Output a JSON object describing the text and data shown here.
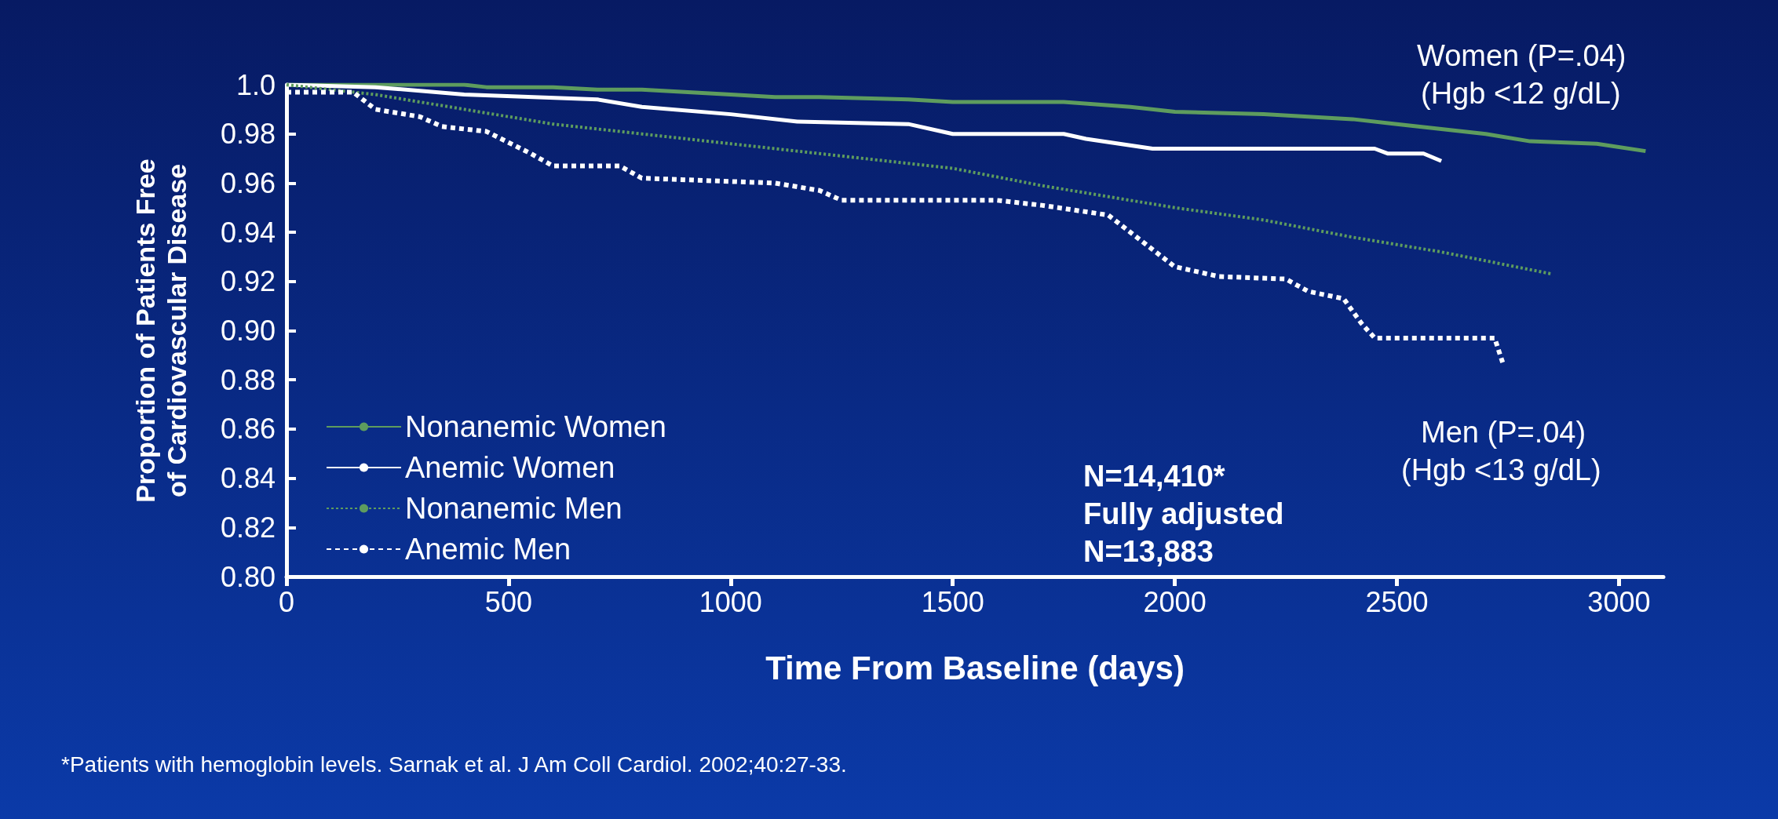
{
  "chart_data": {
    "type": "line",
    "xlabel": "Time From Baseline (days)",
    "ylabel": "Proportion of Patients Free\nof Cardiovascular Disease",
    "xlim": [
      0,
      3100
    ],
    "xticks": [
      0,
      500,
      1000,
      1500,
      2000,
      2500,
      3000
    ],
    "ylim": [
      0.8,
      1.0
    ],
    "yticks": [
      {
        "value": 0.8,
        "label": "0.80"
      },
      {
        "value": 0.82,
        "label": "0.82"
      },
      {
        "value": 0.84,
        "label": "0.84"
      },
      {
        "value": 0.86,
        "label": "0.86"
      },
      {
        "value": 0.88,
        "label": "0.88"
      },
      {
        "value": 0.9,
        "label": "0.90"
      },
      {
        "value": 0.92,
        "label": "0.92"
      },
      {
        "value": 0.94,
        "label": "0.94"
      },
      {
        "value": 0.96,
        "label": "0.96"
      },
      {
        "value": 0.98,
        "label": "0.98"
      },
      {
        "value": 1.0,
        "label": "1.0"
      }
    ],
    "grid": false,
    "legend": "bottom left",
    "marker": "none",
    "series": [
      {
        "name": "Nonanemic Women",
        "color": "#5e9c5e",
        "line_style": "solid",
        "x": [
          0,
          400,
          450,
          600,
          700,
          800,
          1000,
          1100,
          1200,
          1400,
          1500,
          1750,
          1900,
          2000,
          2200,
          2300,
          2400,
          2500,
          2600,
          2700,
          2800,
          2950,
          3060
        ],
        "values": [
          1.0,
          1.0,
          0.999,
          0.999,
          0.998,
          0.998,
          0.996,
          0.995,
          0.995,
          0.994,
          0.993,
          0.993,
          0.991,
          0.989,
          0.988,
          0.987,
          0.986,
          0.984,
          0.982,
          0.98,
          0.977,
          0.976,
          0.973
        ]
      },
      {
        "name": "Anemic Women",
        "color": "#ffffff",
        "line_style": "solid",
        "x": [
          0,
          200,
          400,
          700,
          800,
          1000,
          1150,
          1400,
          1500,
          1750,
          1800,
          1950,
          2450,
          2480,
          2560,
          2600
        ],
        "values": [
          1.0,
          0.999,
          0.996,
          0.994,
          0.991,
          0.988,
          0.985,
          0.984,
          0.98,
          0.98,
          0.978,
          0.974,
          0.974,
          0.972,
          0.972,
          0.969
        ]
      },
      {
        "name": "Nonanemic Men",
        "color": "#5e9c5e",
        "line_style": "dotted",
        "x": [
          0,
          200,
          400,
          600,
          800,
          1000,
          1200,
          1500,
          1700,
          2000,
          2200,
          2400,
          2600,
          2850
        ],
        "values": [
          1.0,
          0.996,
          0.99,
          0.984,
          0.98,
          0.976,
          0.972,
          0.966,
          0.959,
          0.95,
          0.945,
          0.938,
          0.932,
          0.923
        ]
      },
      {
        "name": "Anemic Men",
        "color": "#ffffff",
        "line_style": "dashed",
        "x": [
          0,
          150,
          200,
          300,
          350,
          450,
          550,
          600,
          750,
          800,
          1100,
          1200,
          1250,
          1600,
          1700,
          1850,
          1900,
          1950,
          2000,
          2100,
          2250,
          2300,
          2380,
          2420,
          2450,
          2720,
          2740
        ],
        "values": [
          0.997,
          0.997,
          0.99,
          0.987,
          0.983,
          0.981,
          0.972,
          0.967,
          0.967,
          0.962,
          0.96,
          0.957,
          0.953,
          0.953,
          0.951,
          0.947,
          0.94,
          0.933,
          0.926,
          0.922,
          0.921,
          0.916,
          0.913,
          0.903,
          0.897,
          0.897,
          0.886
        ]
      }
    ],
    "annotations": [
      "Women (P=.04)",
      "(Hgb <12 g/dL)",
      "Men (P=.04)",
      "(Hgb <13 g/dL)",
      "N=14,410*",
      "Fully adjusted",
      "N=13,883",
      "*Patients with hemoglobin levels. Sarnak et al. J Am Coll Cardiol. 2002;40:27-33."
    ]
  }
}
